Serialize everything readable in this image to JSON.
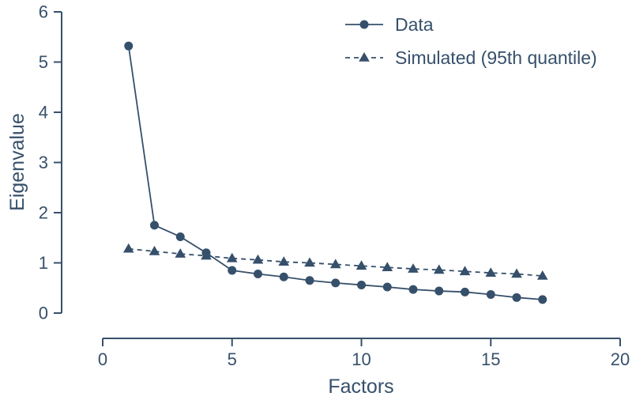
{
  "figure": {
    "background": "#ffffff",
    "accent_color": "#36506b"
  },
  "chart_data": {
    "type": "line",
    "title": "",
    "xlabel": "Factors",
    "ylabel": "Eigenvalue",
    "xlim": [
      0,
      20
    ],
    "ylim": [
      0,
      6
    ],
    "x_ticks": [
      0,
      5,
      10,
      15,
      20
    ],
    "y_ticks": [
      0,
      1,
      2,
      3,
      4,
      5,
      6
    ],
    "grid": false,
    "legend_position": "top-right",
    "x": [
      1,
      2,
      3,
      4,
      5,
      6,
      7,
      8,
      9,
      10,
      11,
      12,
      13,
      14,
      15,
      16,
      17
    ],
    "series": [
      {
        "name": "Data",
        "marker": "circle",
        "line_style": "solid",
        "values": [
          5.32,
          1.75,
          1.52,
          1.2,
          0.85,
          0.78,
          0.72,
          0.65,
          0.6,
          0.56,
          0.52,
          0.47,
          0.44,
          0.42,
          0.37,
          0.31,
          0.27
        ]
      },
      {
        "name": "Simulated (95th quantile)",
        "marker": "triangle",
        "line_style": "dashed",
        "values": [
          1.28,
          1.23,
          1.18,
          1.14,
          1.09,
          1.06,
          1.02,
          1.0,
          0.97,
          0.94,
          0.91,
          0.88,
          0.86,
          0.83,
          0.8,
          0.78,
          0.74
        ]
      }
    ]
  }
}
